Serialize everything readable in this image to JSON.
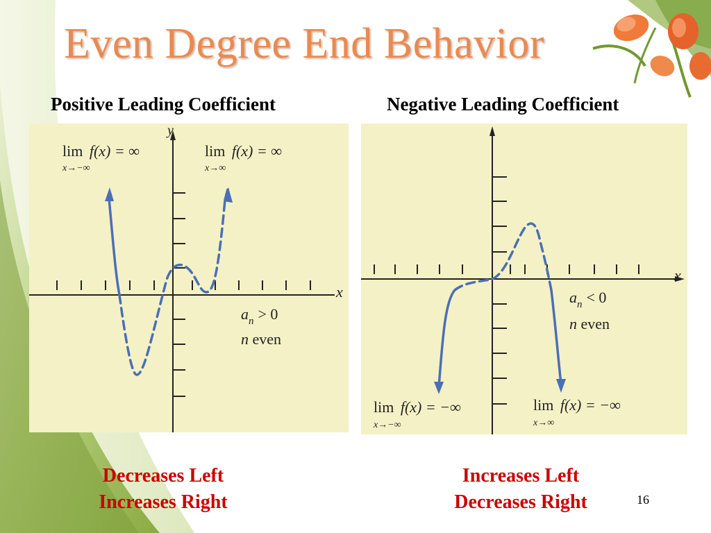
{
  "slide": {
    "title": "Even Degree End Behavior",
    "page_number": "16"
  },
  "left": {
    "heading": "Positive Leading Coefficient",
    "graph": {
      "y_axis_label": "y",
      "x_axis_label": "x",
      "lim_left": {
        "lim": "lim",
        "fx": "f(x) = ∞",
        "sub": "x→−∞"
      },
      "lim_right": {
        "lim": "lim",
        "fx": "f(x) = ∞",
        "sub": "x→∞"
      },
      "condition_var": "a",
      "condition_sub": "n",
      "condition_rest": "> 0",
      "parity_var": "n",
      "parity_rest": " even"
    },
    "caption_line1": "Decreases Left",
    "caption_line2": "Increases Right"
  },
  "right": {
    "heading": "Negative Leading Coefficient",
    "graph": {
      "x_axis_label": "x",
      "lim_left": {
        "lim": "lim",
        "fx": "f(x) = −∞",
        "sub": "x→−∞"
      },
      "lim_right": {
        "lim": "lim",
        "fx": "f(x) = −∞",
        "sub": "x→∞"
      },
      "condition_var": "a",
      "condition_sub": "n",
      "condition_rest": "< 0",
      "parity_var": "n",
      "parity_rest": " even"
    },
    "caption_line1": "Increases Left",
    "caption_line2": "Decreases Right"
  },
  "colors": {
    "title": "#ea8a50",
    "caption": "#cc0000",
    "curve": "#4a6fb5",
    "panel_bg": "#f4f1c6",
    "swoosh_green": "#8fb04a"
  }
}
